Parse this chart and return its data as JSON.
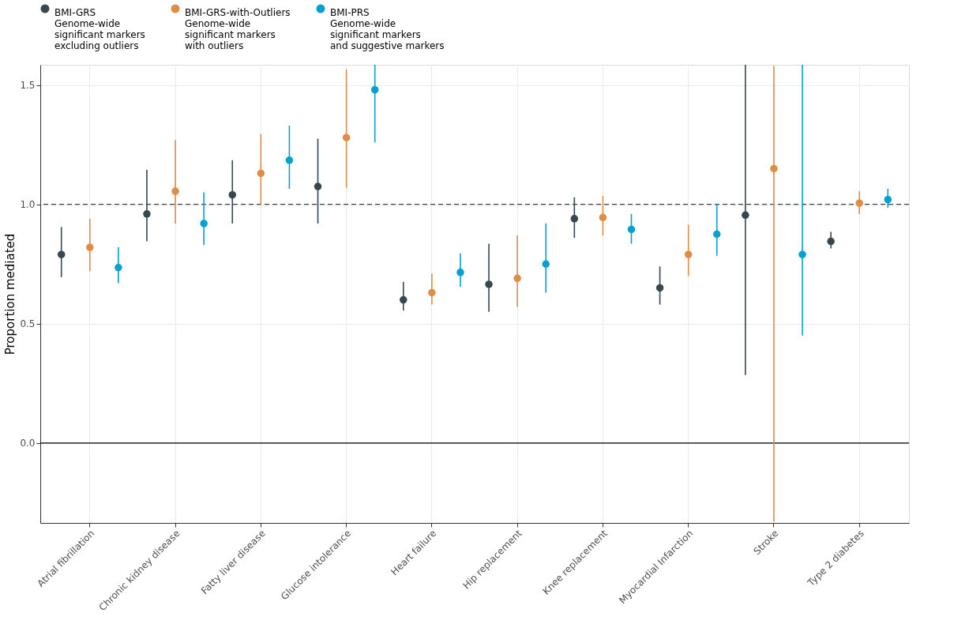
{
  "chart_data": {
    "type": "scatter",
    "categories": [
      "Atrial fibrillation",
      "Chronic kidney disease",
      "Fatty liver disease",
      "Glucose intolerance",
      "Heart failure",
      "Hip replacement",
      "Knee replacement",
      "Myocardial Infarction",
      "Stroke",
      "Type 2 diabetes"
    ],
    "ylabel": "Proportion mediated",
    "ylim": [
      -0.335,
      1.585
    ],
    "yticks": [
      {
        "value": 0,
        "label": "0.0"
      },
      {
        "value": 0.5,
        "label": "0.5"
      },
      {
        "value": 1,
        "label": "1.0"
      },
      {
        "value": 1.5,
        "label": "1.5"
      }
    ],
    "grid": true,
    "legend": "top",
    "marker": "circle",
    "series": [
      {
        "name": "BMI-GRS",
        "color": "#36474f",
        "values": [
          0.79,
          0.96,
          1.04,
          1.075,
          0.6,
          0.665,
          0.94,
          0.65,
          0.955,
          0.845
        ],
        "errors": [
          [
            0.695,
            0.905
          ],
          [
            0.845,
            1.145
          ],
          [
            0.92,
            1.185
          ],
          [
            0.92,
            1.275
          ],
          [
            0.555,
            0.675
          ],
          [
            0.55,
            0.835
          ],
          [
            0.86,
            1.03
          ],
          [
            0.58,
            0.74
          ],
          [
            0.285,
            1.585
          ],
          [
            0.815,
            0.885
          ]
        ]
      },
      {
        "name": "BMI-GRS-with-Outliers",
        "color": "#e08c44",
        "values": [
          0.82,
          1.055,
          1.13,
          1.28,
          0.63,
          0.69,
          0.945,
          0.79,
          1.15,
          1.005
        ],
        "errors": [
          [
            0.72,
            0.94
          ],
          [
            0.92,
            1.27
          ],
          [
            1.0,
            1.295
          ],
          [
            1.07,
            1.565
          ],
          [
            0.58,
            0.71
          ],
          [
            0.57,
            0.87
          ],
          [
            0.87,
            1.035
          ],
          [
            0.7,
            0.915
          ],
          [
            -0.33,
            1.58
          ],
          [
            0.96,
            1.055
          ]
        ]
      },
      {
        "name": "BMI-PRS",
        "color": "#00a0d1",
        "values": [
          0.735,
          0.92,
          1.185,
          1.48,
          0.715,
          0.75,
          0.895,
          0.875,
          0.79,
          1.02
        ],
        "errors": [
          [
            0.67,
            0.82
          ],
          [
            0.83,
            1.05
          ],
          [
            1.065,
            1.33
          ],
          [
            1.26,
            1.585
          ],
          [
            0.655,
            0.795
          ],
          [
            0.63,
            0.92
          ],
          [
            0.835,
            0.96
          ],
          [
            0.785,
            1.0
          ],
          [
            0.45,
            1.585
          ],
          [
            0.985,
            1.065
          ]
        ]
      }
    ],
    "annotations": [
      "Genome-wide\nsignificant markers\nexcluding outliers",
      "Genome-wide\nsignificant markers\nwith outliers",
      "Genome-wide\nsignificant markers\nand suggestive markers"
    ],
    "ref_lines": [
      {
        "axis": "y",
        "value": 1,
        "line_style": "dashed",
        "color": "#444444"
      },
      {
        "axis": "y",
        "value": 0,
        "line_style": "solid",
        "color": "#000000"
      }
    ]
  }
}
